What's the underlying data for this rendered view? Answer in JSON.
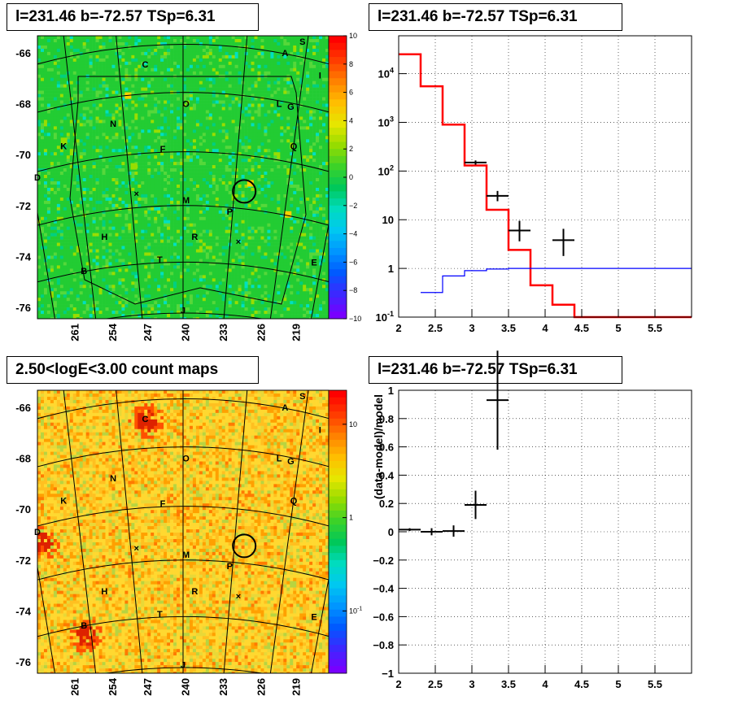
{
  "panels": {
    "tl_title": "l=231.46 b=-72.57 TSp=6.31",
    "tr_title": "l=231.46 b=-72.57 TSp=6.31",
    "bl_title": "2.50<logE<3.00 count maps",
    "br_title": "l=231.46 b=-72.57 TSp=6.31"
  },
  "chart_data": [
    {
      "type": "heatmap",
      "title": "l=231.46 b=-72.57 TSp=6.31",
      "x_ticks": [
        "261",
        "254",
        "247",
        "240",
        "233",
        "226",
        "219"
      ],
      "y_ticks": [
        "-66",
        "-68",
        "-70",
        "-72",
        "-74",
        "-76"
      ],
      "colorbar": {
        "range": [
          -10,
          10
        ],
        "ticks": [
          "10",
          "8",
          "6",
          "4",
          "2",
          "0",
          "−2",
          "−4",
          "−6",
          "−8",
          "−10"
        ]
      },
      "labels": [
        "S",
        "A",
        "C",
        "I",
        "O",
        "L",
        "G",
        "N",
        "K",
        "F",
        "Q",
        "D",
        "M",
        "P",
        "H",
        "R",
        "T",
        "E",
        "B",
        "J"
      ],
      "colors": {
        "base": "#22cc33",
        "palette": [
          "#7f00ff",
          "#0080ff",
          "#00e0e0",
          "#00d080",
          "#22cc33",
          "#99dd00",
          "#ffd000",
          "#ff8000",
          "#ff2020"
        ]
      }
    },
    {
      "type": "line",
      "title": "l=231.46 b=-72.57 TSp=6.31",
      "x_scale": "linear",
      "y_scale": "log",
      "xlim": [
        2,
        6
      ],
      "ylim": [
        0.1,
        60000
      ],
      "x_ticks": [
        "2",
        "2.5",
        "3",
        "3.5",
        "4",
        "4.5",
        "5",
        "5.5"
      ],
      "y_ticks": [
        "10^-1",
        "1",
        "10",
        "10^2",
        "10^3",
        "10^4"
      ],
      "series": [
        {
          "style": "step",
          "color": "#ff0000",
          "edges": [
            2.0,
            2.3,
            2.6,
            2.9,
            3.2,
            3.5,
            3.8,
            4.1,
            4.4,
            6.0
          ],
          "values": [
            25000,
            5500,
            900,
            130,
            16,
            2.4,
            0.45,
            0.18,
            0.1
          ]
        },
        {
          "style": "step",
          "color": "#0000ff",
          "edges": [
            2.3,
            2.6,
            2.9,
            3.2,
            3.5,
            6.0
          ],
          "values": [
            0.32,
            0.7,
            0.9,
            0.97,
            1.0
          ]
        },
        {
          "style": "errorbars",
          "color": "#000000",
          "points": [
            {
              "x": 3.05,
              "y": 150,
              "xerr": 0.15,
              "ylo": 135,
              "yhi": 165
            },
            {
              "x": 3.35,
              "y": 31,
              "xerr": 0.15,
              "ylo": 24,
              "yhi": 39
            },
            {
              "x": 3.65,
              "y": 6,
              "xerr": 0.15,
              "ylo": 3.6,
              "yhi": 9.5
            },
            {
              "x": 4.25,
              "y": 3.8,
              "xerr": 0.15,
              "ylo": 1.8,
              "yhi": 6.5
            }
          ]
        }
      ]
    },
    {
      "type": "heatmap",
      "title": "2.50<logE<3.00 count maps",
      "x_ticks": [
        "261",
        "254",
        "247",
        "240",
        "233",
        "226",
        "219"
      ],
      "y_ticks": [
        "-66",
        "-68",
        "-70",
        "-72",
        "-74",
        "-76"
      ],
      "colorbar": {
        "scale": "log",
        "ticks": [
          "10",
          "1",
          "10^-1"
        ]
      },
      "labels": [
        "S",
        "A",
        "C",
        "I",
        "O",
        "L",
        "G",
        "N",
        "K",
        "F",
        "Q",
        "D",
        "M",
        "P",
        "H",
        "R",
        "T",
        "E",
        "B",
        "J"
      ],
      "colors": {
        "palette": [
          "#ffe040",
          "#f2c020",
          "#d8d020",
          "#ffaa00",
          "#ff8a00",
          "#a8d030"
        ],
        "hot": "#dd2200"
      }
    },
    {
      "type": "scatter",
      "title": "l=231.46 b=-72.57 TSp=6.31",
      "ylabel": "(data-model)/model",
      "xlim": [
        2,
        6
      ],
      "ylim": [
        -1,
        1
      ],
      "x_ticks": [
        "2",
        "2.5",
        "3",
        "3.5",
        "4",
        "4.5",
        "5",
        "5.5"
      ],
      "y_ticks": [
        "1",
        "0.8",
        "0.6",
        "0.4",
        "0.2",
        "0",
        "−0.2",
        "−0.4",
        "−0.6",
        "−0.8",
        "−1"
      ],
      "points": [
        {
          "x": 2.15,
          "y": 0.015,
          "xerr": 0.15,
          "yerr": 0.01
        },
        {
          "x": 2.45,
          "y": 0.0,
          "xerr": 0.15,
          "yerr": 0.025
        },
        {
          "x": 2.75,
          "y": 0.005,
          "xerr": 0.15,
          "yerr": 0.04
        },
        {
          "x": 3.05,
          "y": 0.19,
          "xerr": 0.15,
          "yerr": 0.1
        },
        {
          "x": 3.35,
          "y": 0.93,
          "xerr": 0.15,
          "yerr": 0.35
        }
      ]
    }
  ]
}
